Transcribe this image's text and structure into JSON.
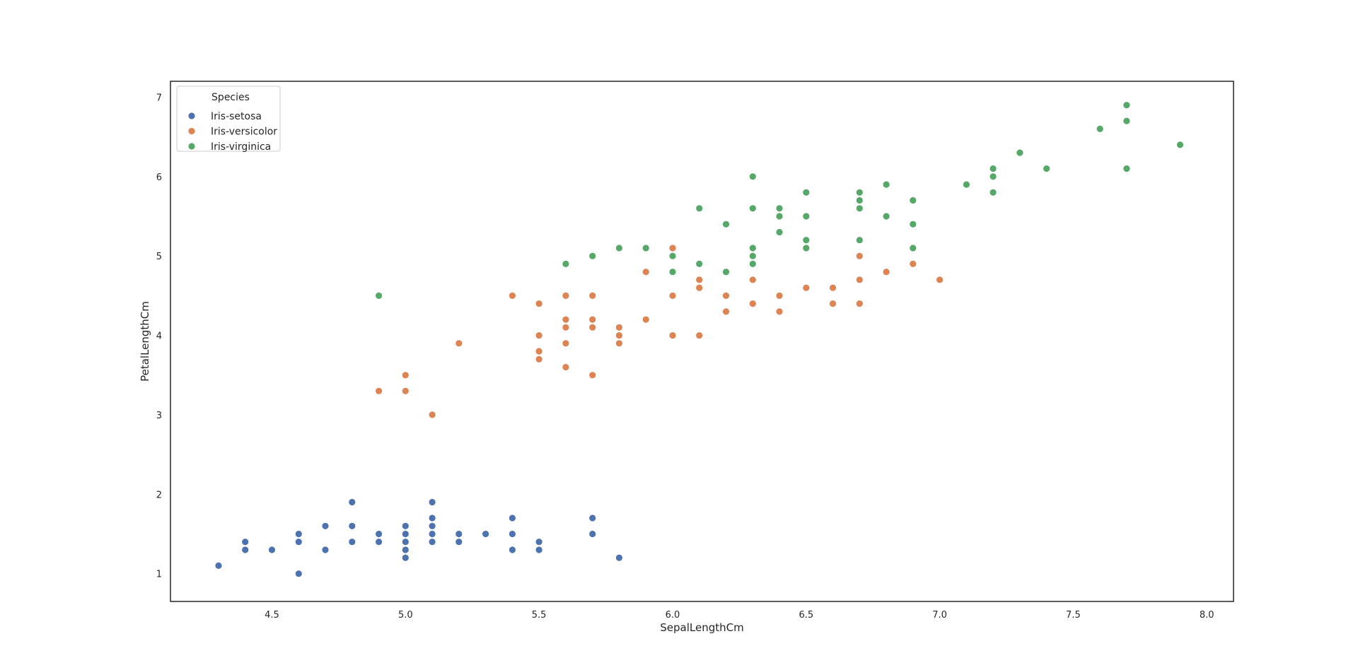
{
  "chart_data": {
    "type": "scatter",
    "title": "",
    "xlabel": "SepalLengthCm",
    "ylabel": "PetalLengthCm",
    "xlim": [
      4.12,
      8.1
    ],
    "ylim": [
      0.65,
      7.2
    ],
    "x_ticks": [
      4.5,
      5.0,
      5.5,
      6.0,
      6.5,
      7.0,
      7.5,
      8.0
    ],
    "y_ticks": [
      1,
      2,
      3,
      4,
      5,
      6,
      7
    ],
    "grid": false,
    "legend": {
      "title": "Species",
      "placement": "top-left"
    },
    "series": [
      {
        "name": "Iris-setosa",
        "color": "#4c72b0",
        "points": [
          [
            4.3,
            1.1
          ],
          [
            4.4,
            1.4
          ],
          [
            4.4,
            1.3
          ],
          [
            4.5,
            1.3
          ],
          [
            4.6,
            1.5
          ],
          [
            4.6,
            1.4
          ],
          [
            4.6,
            1.0
          ],
          [
            4.7,
            1.6
          ],
          [
            4.7,
            1.3
          ],
          [
            4.8,
            1.9
          ],
          [
            4.8,
            1.6
          ],
          [
            4.8,
            1.4
          ],
          [
            4.9,
            1.5
          ],
          [
            4.9,
            1.4
          ],
          [
            5.0,
            1.6
          ],
          [
            5.0,
            1.5
          ],
          [
            5.0,
            1.4
          ],
          [
            5.0,
            1.3
          ],
          [
            5.0,
            1.2
          ],
          [
            5.1,
            1.9
          ],
          [
            5.1,
            1.7
          ],
          [
            5.1,
            1.6
          ],
          [
            5.1,
            1.5
          ],
          [
            5.1,
            1.4
          ],
          [
            5.2,
            1.5
          ],
          [
            5.2,
            1.4
          ],
          [
            5.3,
            1.5
          ],
          [
            5.4,
            1.7
          ],
          [
            5.4,
            1.5
          ],
          [
            5.4,
            1.3
          ],
          [
            5.5,
            1.4
          ],
          [
            5.5,
            1.3
          ],
          [
            5.7,
            1.7
          ],
          [
            5.7,
            1.5
          ],
          [
            5.8,
            1.2
          ]
        ]
      },
      {
        "name": "Iris-versicolor",
        "color": "#dd8452",
        "points": [
          [
            4.9,
            3.3
          ],
          [
            5.0,
            3.5
          ],
          [
            5.0,
            3.3
          ],
          [
            5.1,
            3.0
          ],
          [
            5.2,
            3.9
          ],
          [
            5.4,
            4.5
          ],
          [
            5.5,
            4.4
          ],
          [
            5.5,
            4.0
          ],
          [
            5.5,
            3.8
          ],
          [
            5.5,
            3.7
          ],
          [
            5.6,
            4.5
          ],
          [
            5.6,
            4.2
          ],
          [
            5.6,
            4.1
          ],
          [
            5.6,
            3.9
          ],
          [
            5.6,
            3.6
          ],
          [
            5.7,
            4.5
          ],
          [
            5.7,
            4.2
          ],
          [
            5.7,
            4.1
          ],
          [
            5.7,
            3.5
          ],
          [
            5.8,
            4.1
          ],
          [
            5.8,
            4.0
          ],
          [
            5.8,
            3.9
          ],
          [
            5.9,
            4.8
          ],
          [
            5.9,
            4.2
          ],
          [
            6.0,
            5.1
          ],
          [
            6.0,
            4.5
          ],
          [
            6.0,
            4.0
          ],
          [
            6.1,
            4.7
          ],
          [
            6.1,
            4.6
          ],
          [
            6.1,
            4.0
          ],
          [
            6.2,
            4.5
          ],
          [
            6.2,
            4.3
          ],
          [
            6.3,
            4.7
          ],
          [
            6.3,
            4.4
          ],
          [
            6.4,
            4.5
          ],
          [
            6.4,
            4.3
          ],
          [
            6.5,
            4.6
          ],
          [
            6.6,
            4.6
          ],
          [
            6.6,
            4.4
          ],
          [
            6.7,
            5.0
          ],
          [
            6.7,
            4.7
          ],
          [
            6.7,
            4.4
          ],
          [
            6.8,
            4.8
          ],
          [
            6.9,
            4.9
          ],
          [
            7.0,
            4.7
          ]
        ]
      },
      {
        "name": "Iris-virginica",
        "color": "#55a868",
        "points": [
          [
            4.9,
            4.5
          ],
          [
            5.6,
            4.9
          ],
          [
            5.7,
            5.0
          ],
          [
            5.8,
            5.1
          ],
          [
            5.9,
            5.1
          ],
          [
            6.0,
            5.0
          ],
          [
            6.0,
            4.8
          ],
          [
            6.1,
            5.6
          ],
          [
            6.1,
            4.9
          ],
          [
            6.2,
            5.4
          ],
          [
            6.2,
            4.8
          ],
          [
            6.3,
            6.0
          ],
          [
            6.3,
            5.6
          ],
          [
            6.3,
            5.1
          ],
          [
            6.3,
            5.0
          ],
          [
            6.3,
            4.9
          ],
          [
            6.4,
            5.6
          ],
          [
            6.4,
            5.5
          ],
          [
            6.4,
            5.3
          ],
          [
            6.5,
            5.8
          ],
          [
            6.5,
            5.5
          ],
          [
            6.5,
            5.2
          ],
          [
            6.5,
            5.1
          ],
          [
            6.7,
            5.8
          ],
          [
            6.7,
            5.7
          ],
          [
            6.7,
            5.6
          ],
          [
            6.7,
            5.2
          ],
          [
            6.8,
            5.9
          ],
          [
            6.8,
            5.5
          ],
          [
            6.9,
            5.7
          ],
          [
            6.9,
            5.4
          ],
          [
            6.9,
            5.1
          ],
          [
            7.1,
            5.9
          ],
          [
            7.2,
            6.1
          ],
          [
            7.2,
            6.0
          ],
          [
            7.2,
            5.8
          ],
          [
            7.3,
            6.3
          ],
          [
            7.4,
            6.1
          ],
          [
            7.6,
            6.6
          ],
          [
            7.7,
            6.9
          ],
          [
            7.7,
            6.7
          ],
          [
            7.7,
            6.1
          ],
          [
            7.9,
            6.4
          ]
        ]
      }
    ]
  }
}
